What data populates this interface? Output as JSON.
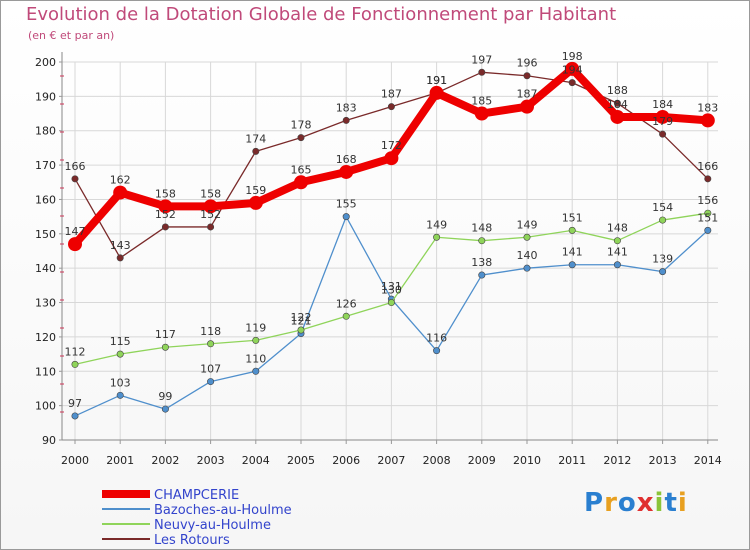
{
  "chart_data": {
    "type": "line",
    "title": "Evolution de la Dotation Globale de Fonctionnement par Habitant",
    "subtitle": "(en € et par an)",
    "x": [
      "2000",
      "2001",
      "2002",
      "2003",
      "2004",
      "2005",
      "2006",
      "2007",
      "2008",
      "2009",
      "2010",
      "2011",
      "2012",
      "2013",
      "2014"
    ],
    "ylim": [
      90,
      200
    ],
    "yticks": [
      90,
      100,
      110,
      120,
      130,
      140,
      150,
      160,
      170,
      180,
      190,
      200
    ],
    "grid": true,
    "legend_position": "bottom-left",
    "series": [
      {
        "name": "CHAMPCERIE",
        "color": "#ee0000",
        "values": [
          147,
          162,
          158,
          158,
          159,
          165,
          168,
          172,
          191,
          185,
          187,
          198,
          184,
          184,
          183
        ]
      },
      {
        "name": "Bazoches-au-Houlme",
        "color": "#4f8fcc",
        "values": [
          97,
          103,
          99,
          107,
          110,
          121,
          155,
          131,
          116,
          138,
          140,
          141,
          141,
          139,
          151
        ]
      },
      {
        "name": "Neuvy-au-Houlme",
        "color": "#8fd45a",
        "values": [
          112,
          115,
          117,
          118,
          119,
          122,
          126,
          130,
          149,
          148,
          149,
          151,
          148,
          154,
          156
        ]
      },
      {
        "name": "Les Rotours",
        "color": "#7a2a2a",
        "values": [
          166,
          143,
          152,
          152,
          174,
          178,
          183,
          187,
          191,
          197,
          196,
          194,
          188,
          179,
          166
        ]
      }
    ]
  },
  "logo": {
    "text": "Proxiti",
    "colors": [
      "#2a7fd0",
      "#e8a020",
      "#2a7fd0",
      "#e03030",
      "#8bc43a",
      "#2a7fd0",
      "#e8a020"
    ]
  }
}
